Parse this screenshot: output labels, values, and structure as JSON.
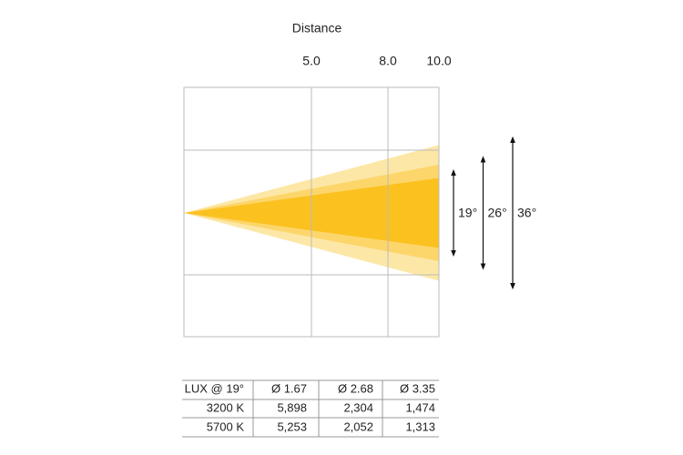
{
  "title": "Distance",
  "distance": {
    "lim": [
      0,
      10
    ],
    "ticks": [
      {
        "value": 5,
        "label": "5.0"
      },
      {
        "value": 8,
        "label": "8.0"
      },
      {
        "value": 10,
        "label": "10.0"
      }
    ]
  },
  "beams": [
    {
      "angle": 36,
      "label": "36°",
      "color": "#fde7a6"
    },
    {
      "angle": 26,
      "label": "26°",
      "color": "#fcd66a"
    },
    {
      "angle": 19,
      "label": "19°",
      "color": "#fbc11f"
    }
  ],
  "table": {
    "rows": [
      [
        "LUX @ 19°",
        "Ø 1.67",
        "Ø 2.68",
        "Ø 3.35"
      ],
      [
        "3200 K",
        "5,898",
        "2,304",
        "1,474"
      ],
      [
        "5700 K",
        "5,253",
        "2,052",
        "1,313"
      ]
    ]
  }
}
